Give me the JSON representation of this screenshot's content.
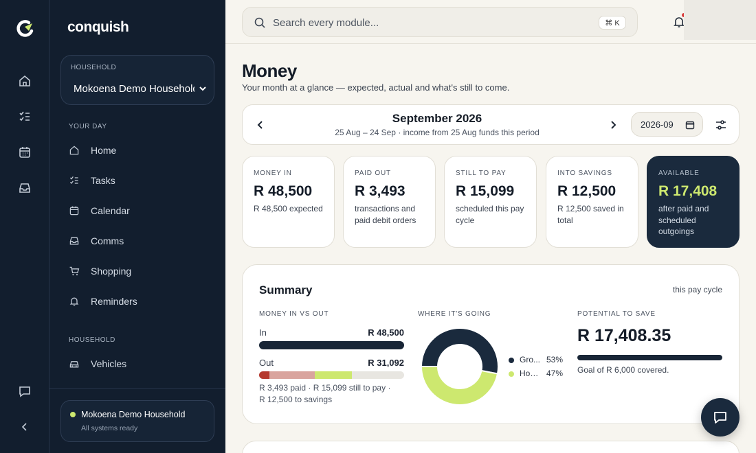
{
  "app": {
    "brand": "conquish",
    "household_caption": "HOUSEHOLD",
    "household_name": "Mokoena Demo Household"
  },
  "sidebar": {
    "sections": [
      {
        "label": "YOUR DAY"
      },
      {
        "label": "HOUSEHOLD"
      }
    ],
    "items": [
      {
        "label": "Home",
        "icon": "home-icon"
      },
      {
        "label": "Tasks",
        "icon": "tasks-icon"
      },
      {
        "label": "Calendar",
        "icon": "calendar-icon"
      },
      {
        "label": "Comms",
        "icon": "inbox-icon"
      },
      {
        "label": "Shopping",
        "icon": "cart-icon"
      },
      {
        "label": "Reminders",
        "icon": "bell-icon"
      },
      {
        "label": "Vehicles",
        "icon": "car-icon"
      }
    ],
    "status": {
      "name": "Mokoena Demo Household",
      "sub": "All systems ready"
    }
  },
  "search": {
    "placeholder": "Search every module...",
    "shortcut": "⌘ K"
  },
  "page": {
    "title": "Money",
    "subtitle": "Your month at a glance — expected, actual and what's still to come."
  },
  "period": {
    "title": "September 2026",
    "subtitle": "25 Aug – 24 Sep · income from 25 Aug funds this period",
    "month_value": "2026-09"
  },
  "stats": [
    {
      "caption": "MONEY IN",
      "value": "R 48,500",
      "note": "R 48,500 expected"
    },
    {
      "caption": "PAID OUT",
      "value": "R 3,493",
      "note": "transactions and paid debit orders"
    },
    {
      "caption": "STILL TO PAY",
      "value": "R 15,099",
      "note": "scheduled this pay cycle"
    },
    {
      "caption": "INTO SAVINGS",
      "value": "R 12,500",
      "note": "R 12,500 saved in total"
    },
    {
      "caption": "AVAILABLE",
      "value": "R 17,408",
      "note": "after paid and scheduled outgoings"
    }
  ],
  "summary": {
    "title": "Summary",
    "period_label": "this pay cycle",
    "in_vs_out": {
      "caption": "MONEY IN VS OUT",
      "in_label": "In",
      "in_value": "R 48,500",
      "out_label": "Out",
      "out_value": "R 31,092",
      "note": "R 3,493 paid · R 15,099 still to pay · R 12,500 to savings",
      "out_segments": [
        {
          "name": "paid",
          "value": 3493,
          "color": "#b5392e"
        },
        {
          "name": "still to pay",
          "value": 15099,
          "color": "#d9a49e"
        },
        {
          "name": "savings",
          "value": 12500,
          "color": "#cde86f"
        }
      ],
      "out_scale": 48500
    },
    "where_going": {
      "caption": "WHERE IT'S GOING",
      "slices": [
        {
          "name": "Groceries",
          "short": "Gro...",
          "pct": "53%",
          "value": 53,
          "color": "#1a2a3d"
        },
        {
          "name": "Household",
          "short": "Hou...",
          "pct": "47%",
          "value": 47,
          "color": "#cde86f"
        }
      ]
    },
    "potential": {
      "caption": "POTENTIAL TO SAVE",
      "value": "R 17,408.35",
      "progress": 1.0,
      "note": "Goal of R 6,000 covered."
    }
  },
  "colors": {
    "navy": "#121e2e",
    "card_dark": "#1a2a3d",
    "lime": "#cde86f",
    "bg": "#f7f5ef"
  }
}
